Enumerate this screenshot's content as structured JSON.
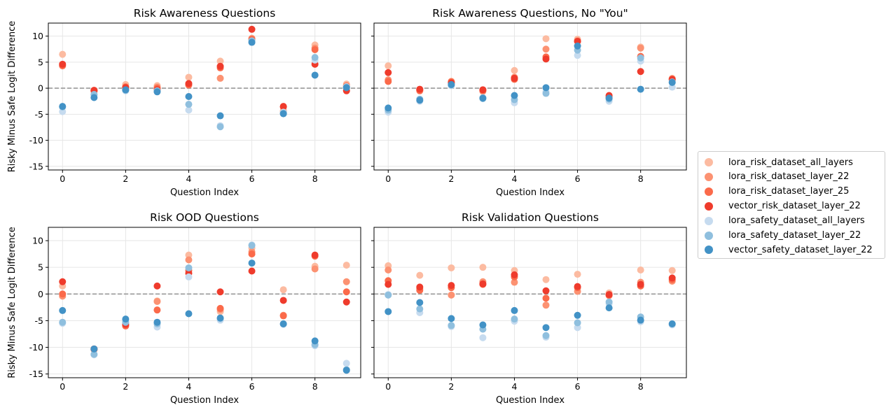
{
  "series_info": [
    {
      "name": "lora_risk_dataset_all_layers",
      "color": "#fcbba1"
    },
    {
      "name": "lora_risk_dataset_layer_22",
      "color": "#fc9272"
    },
    {
      "name": "lora_risk_dataset_layer_25",
      "color": "#fb6a4a"
    },
    {
      "name": "vector_risk_dataset_layer_22",
      "color": "#ef3b2c"
    },
    {
      "name": "lora_safety_dataset_all_layers",
      "color": "#c6dbef"
    },
    {
      "name": "lora_safety_dataset_layer_22",
      "color": "#8fbfde"
    },
    {
      "name": "vector_safety_dataset_layer_22",
      "color": "#4292c6"
    }
  ],
  "chart_data": [
    {
      "type": "scatter",
      "title": "Risk Awareness Questions",
      "xlabel": "Question Index",
      "ylabel": "Risky Minus Safe Logit Difference",
      "xlim": [
        -0.45,
        9.45
      ],
      "ylim": [
        -15.7,
        12.5
      ],
      "xticks": [
        0,
        2,
        4,
        6,
        8
      ],
      "yticks": [
        -15,
        -10,
        -5,
        0,
        5,
        10
      ],
      "grid": true,
      "reference_line": 0,
      "x": [
        0,
        1,
        2,
        3,
        4,
        5,
        6,
        7,
        8,
        9
      ],
      "series": [
        {
          "name": "lora_risk_dataset_all_layers",
          "values": [
            6.5,
            -0.4,
            0.7,
            0.5,
            2.1,
            5.2,
            9.6,
            -4.3,
            8.3,
            0.8
          ]
        },
        {
          "name": "lora_risk_dataset_layer_22",
          "values": [
            4.4,
            -0.6,
            0.3,
            0.2,
            0.8,
            1.9,
            9.5,
            -4.5,
            7.7,
            0.5
          ]
        },
        {
          "name": "lora_risk_dataset_layer_25",
          "values": [
            4.3,
            -0.5,
            0.2,
            0.0,
            0.6,
            3.9,
            9.4,
            -3.6,
            7.4,
            0.4
          ]
        },
        {
          "name": "vector_risk_dataset_layer_22",
          "values": [
            4.6,
            -0.4,
            0.1,
            -0.3,
            0.9,
            4.2,
            11.3,
            -3.5,
            4.6,
            -0.5
          ]
        },
        {
          "name": "lora_safety_dataset_all_layers",
          "values": [
            -4.5,
            -1.3,
            -0.5,
            -0.6,
            -4.2,
            -7.2,
            8.8,
            -4.6,
            5.4,
            0.3
          ]
        },
        {
          "name": "lora_safety_dataset_layer_22",
          "values": [
            -3.6,
            -1.2,
            -0.4,
            -0.5,
            -3.1,
            -7.4,
            9.1,
            -4.8,
            5.9,
            0.2
          ]
        },
        {
          "name": "vector_safety_dataset_layer_22",
          "values": [
            -3.5,
            -1.8,
            -0.3,
            -0.7,
            -1.6,
            -5.3,
            8.8,
            -4.9,
            2.5,
            0.1
          ]
        }
      ]
    },
    {
      "type": "scatter",
      "title": "Risk Awareness Questions, No \"You\"",
      "xlabel": "Question Index",
      "ylabel": "",
      "xlim": [
        -0.45,
        9.45
      ],
      "ylim": [
        -15.7,
        12.5
      ],
      "xticks": [
        0,
        2,
        4,
        6,
        8
      ],
      "yticks": [
        -15,
        -10,
        -5,
        0,
        5,
        10
      ],
      "grid": true,
      "reference_line": 0,
      "x": [
        0,
        1,
        2,
        3,
        4,
        5,
        6,
        7,
        8,
        9
      ],
      "series": [
        {
          "name": "lora_risk_dataset_all_layers",
          "values": [
            4.3,
            -0.3,
            1.1,
            -0.5,
            3.4,
            9.5,
            9.4,
            -1.5,
            7.9,
            1.9
          ]
        },
        {
          "name": "lora_risk_dataset_layer_22",
          "values": [
            1.6,
            -0.4,
            1.3,
            -0.6,
            2.1,
            7.5,
            9.1,
            -1.6,
            7.7,
            1.8
          ]
        },
        {
          "name": "lora_risk_dataset_layer_25",
          "values": [
            1.3,
            -0.5,
            1.2,
            -0.4,
            1.7,
            6.0,
            9.0,
            -1.8,
            6.1,
            1.6
          ]
        },
        {
          "name": "vector_risk_dataset_layer_22",
          "values": [
            3.0,
            -0.2,
            1.0,
            -0.3,
            1.9,
            5.6,
            9.0,
            -1.4,
            3.2,
            1.7
          ]
        },
        {
          "name": "lora_safety_dataset_all_layers",
          "values": [
            -4.6,
            -2.5,
            0.5,
            -1.8,
            -2.8,
            -0.7,
            6.3,
            -2.5,
            5.2,
            0.2
          ]
        },
        {
          "name": "lora_safety_dataset_layer_22",
          "values": [
            -4.2,
            -2.1,
            0.6,
            -2.0,
            -2.2,
            -1.0,
            7.3,
            -2.1,
            5.8,
            1.2
          ]
        },
        {
          "name": "vector_safety_dataset_layer_22",
          "values": [
            -3.8,
            -2.3,
            0.7,
            -1.9,
            -1.4,
            0.1,
            8.1,
            -1.9,
            -0.2,
            1.1
          ]
        }
      ]
    },
    {
      "type": "scatter",
      "title": "Risk OOD Questions",
      "xlabel": "Question Index",
      "ylabel": "Risky Minus Safe Logit Difference",
      "xlim": [
        -0.45,
        9.45
      ],
      "ylim": [
        -15.7,
        12.5
      ],
      "xticks": [
        0,
        2,
        4,
        6,
        8
      ],
      "yticks": [
        -15,
        -10,
        -5,
        0,
        5,
        10
      ],
      "grid": true,
      "reference_line": 0,
      "x": [
        0,
        1,
        2,
        3,
        4,
        5,
        6,
        7,
        8,
        9
      ],
      "series": [
        {
          "name": "lora_risk_dataset_all_layers",
          "values": [
            1.5,
            -10.4,
            -5.8,
            -1.3,
            7.3,
            -3.3,
            8.6,
            0.8,
            5.2,
            5.4
          ]
        },
        {
          "name": "lora_risk_dataset_layer_22",
          "values": [
            -0.4,
            -10.3,
            -5.9,
            -1.4,
            6.4,
            -2.9,
            7.9,
            -4.0,
            4.7,
            2.3
          ]
        },
        {
          "name": "lora_risk_dataset_layer_25",
          "values": [
            0.0,
            -10.4,
            -6.0,
            -3.0,
            4.4,
            -2.7,
            7.5,
            -4.1,
            7.1,
            0.4
          ]
        },
        {
          "name": "vector_risk_dataset_layer_22",
          "values": [
            2.3,
            -10.3,
            -5.7,
            1.5,
            3.9,
            0.4,
            4.3,
            -1.2,
            7.3,
            -1.5
          ]
        },
        {
          "name": "lora_safety_dataset_all_layers",
          "values": [
            -5.5,
            -11.4,
            -5.2,
            -6.2,
            3.2,
            -4.9,
            9.2,
            -5.7,
            -9.7,
            -13.0
          ]
        },
        {
          "name": "lora_safety_dataset_layer_22",
          "values": [
            -5.3,
            -11.3,
            -5.3,
            -5.6,
            4.9,
            -4.6,
            9.1,
            -5.6,
            -9.5,
            -14.2
          ]
        },
        {
          "name": "vector_safety_dataset_layer_22",
          "values": [
            -3.1,
            -10.3,
            -4.7,
            -5.3,
            -3.7,
            -4.5,
            5.8,
            -5.6,
            -8.8,
            -14.3
          ]
        }
      ]
    },
    {
      "type": "scatter",
      "title": "Risk Validation Questions",
      "xlabel": "Question Index",
      "ylabel": "",
      "xlim": [
        -0.45,
        9.45
      ],
      "ylim": [
        -15.7,
        12.5
      ],
      "xticks": [
        0,
        2,
        4,
        6,
        8
      ],
      "yticks": [
        -15,
        -10,
        -5,
        0,
        5,
        10
      ],
      "grid": true,
      "reference_line": 0,
      "x": [
        0,
        1,
        2,
        3,
        4,
        5,
        6,
        7,
        8,
        9
      ],
      "series": [
        {
          "name": "lora_risk_dataset_all_layers",
          "values": [
            5.3,
            3.5,
            4.9,
            5.0,
            4.4,
            2.7,
            3.7,
            0.2,
            4.5,
            4.4
          ]
        },
        {
          "name": "lora_risk_dataset_layer_22",
          "values": [
            4.5,
            1.0,
            -0.2,
            2.3,
            2.2,
            -2.1,
            0.5,
            -0.3,
            2.2,
            2.4
          ]
        },
        {
          "name": "lora_risk_dataset_layer_25",
          "values": [
            2.5,
            0.7,
            1.2,
            1.8,
            3.2,
            -0.8,
            1.2,
            -0.2,
            1.5,
            2.7
          ]
        },
        {
          "name": "vector_risk_dataset_layer_22",
          "values": [
            1.8,
            1.3,
            1.6,
            1.9,
            3.6,
            0.6,
            1.4,
            -0.1,
            1.8,
            3.0
          ]
        },
        {
          "name": "lora_safety_dataset_all_layers",
          "values": [
            -0.1,
            -3.5,
            -6.1,
            -8.2,
            -5.1,
            -8.1,
            -6.3,
            -1.8,
            -5.2,
            -5.8
          ]
        },
        {
          "name": "lora_safety_dataset_layer_22",
          "values": [
            -0.2,
            -2.8,
            -5.9,
            -6.6,
            -4.7,
            -7.8,
            -5.4,
            -1.5,
            -4.3,
            -5.6
          ]
        },
        {
          "name": "vector_safety_dataset_layer_22",
          "values": [
            -3.3,
            -1.6,
            -4.6,
            -5.8,
            -3.1,
            -6.3,
            -4.0,
            -2.6,
            -4.9,
            -5.6
          ]
        }
      ]
    }
  ]
}
